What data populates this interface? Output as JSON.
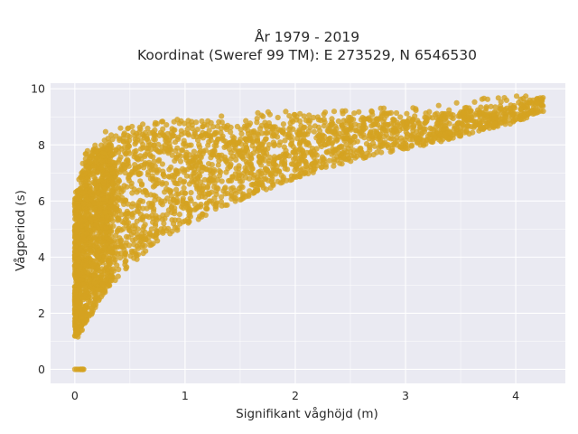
{
  "chart_data": {
    "type": "scatter",
    "title_lines": [
      "År 1979 - 2019",
      "Koordinat (Sweref 99 TM): E 273529, N 6546530"
    ],
    "xlabel": "Signifikant våghöjd (m)",
    "ylabel": "Vågperiod (s)",
    "xlim": [
      -0.22,
      4.45
    ],
    "ylim": [
      -0.5,
      10.2
    ],
    "xticks": [
      0,
      1,
      2,
      3,
      4
    ],
    "yticks": [
      0,
      2,
      4,
      6,
      8,
      10
    ],
    "grid": true,
    "legend": "none",
    "colors": {
      "background": "#eaeaf2",
      "grid": "#ffffff",
      "marker": "#d4a320"
    },
    "envelope": {
      "description_x": [
        0.0,
        0.05,
        0.1,
        0.2,
        0.3,
        0.5,
        0.7,
        1.0,
        1.3,
        1.6,
        2.0,
        2.4,
        2.8,
        3.2,
        3.6,
        4.0,
        4.25
      ],
      "lower_y": [
        1.1,
        1.2,
        1.6,
        2.3,
        2.9,
        3.7,
        4.4,
        5.1,
        5.7,
        6.2,
        6.8,
        7.3,
        7.7,
        8.0,
        8.4,
        8.8,
        9.2
      ],
      "upper_y": [
        6.2,
        7.0,
        7.8,
        8.1,
        8.2,
        8.3,
        8.5,
        8.6,
        8.7,
        8.8,
        8.9,
        8.9,
        9.0,
        9.0,
        9.3,
        9.5,
        9.7
      ]
    },
    "zero_cluster": {
      "x": [
        0.0,
        0.05,
        0.08
      ],
      "y": 0
    }
  }
}
